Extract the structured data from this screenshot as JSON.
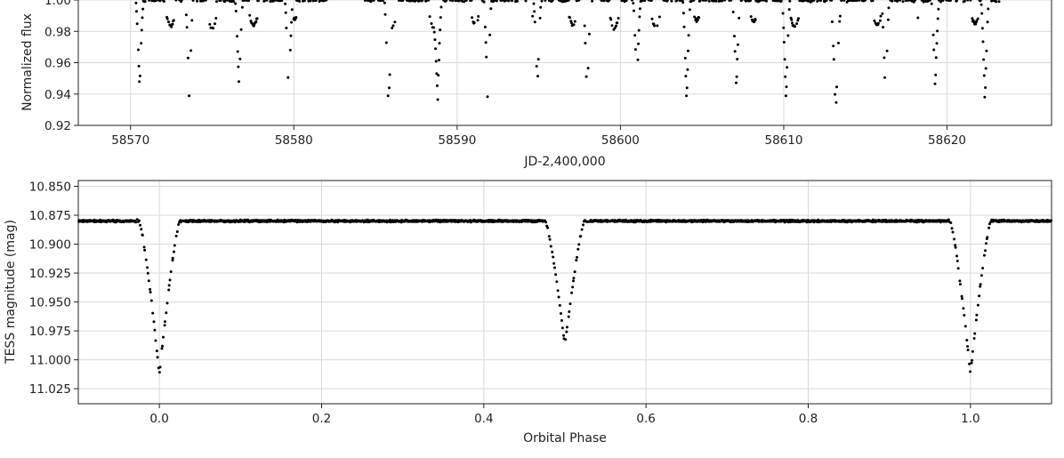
{
  "chart_data": [
    {
      "type": "scatter",
      "title": "",
      "xlabel": "JD-2,400,000",
      "ylabel": "Normalized flux",
      "xlim": [
        58566.8,
        58626.4
      ],
      "ylim": [
        0.92,
        1.0
      ],
      "x_ticks": [
        58570,
        58580,
        58590,
        58600,
        58610,
        58620
      ],
      "y_ticks": [
        0.92,
        0.94,
        0.96,
        0.98,
        1.0
      ],
      "x_tick_labels": [
        "58570",
        "58580",
        "58590",
        "58600",
        "58610",
        "58620"
      ],
      "y_tick_labels": [
        "0.92",
        "0.94",
        "0.96",
        "0.98",
        "1.00"
      ],
      "grid": true,
      "marker_color": "#000000",
      "series": [
        {
          "period_days": 6.09,
          "primary_minimum_jd": 58573.6,
          "primary_depth_flux": 0.935,
          "secondary_depth_flux": 0.944,
          "out_of_eclipse_flux": 1.0,
          "data_start_jd": 58570.3,
          "data_end_jd": 58623.2,
          "gap_jd": [
            58582.0,
            58584.0
          ]
        }
      ]
    },
    {
      "type": "scatter",
      "title": "",
      "xlabel": "Orbital Phase",
      "ylabel": "TESS magnitude (mag)",
      "xlim": [
        -0.1,
        1.1
      ],
      "ylim": [
        10.845,
        11.038
      ],
      "y_inverted": true,
      "x_ticks": [
        0.0,
        0.2,
        0.4,
        0.6,
        0.8,
        1.0
      ],
      "y_ticks": [
        10.85,
        10.875,
        10.9,
        10.925,
        10.95,
        10.975,
        11.0,
        11.025
      ],
      "x_tick_labels": [
        "0.0",
        "0.2",
        "0.4",
        "0.6",
        "0.8",
        "1.0"
      ],
      "y_tick_labels": [
        "10.850",
        "10.875",
        "10.900",
        "10.925",
        "10.950",
        "10.975",
        "11.000",
        "11.025"
      ],
      "grid": true,
      "marker_color": "#000000",
      "series": [
        {
          "out_of_eclipse_mag": 10.88,
          "primary_min_phase": 0.0,
          "primary_min_mag": 11.013,
          "primary_half_width_phase": 0.025,
          "secondary_min_phase": 0.5,
          "secondary_min_mag": 10.988,
          "secondary_half_width_phase": 0.024
        }
      ]
    }
  ]
}
